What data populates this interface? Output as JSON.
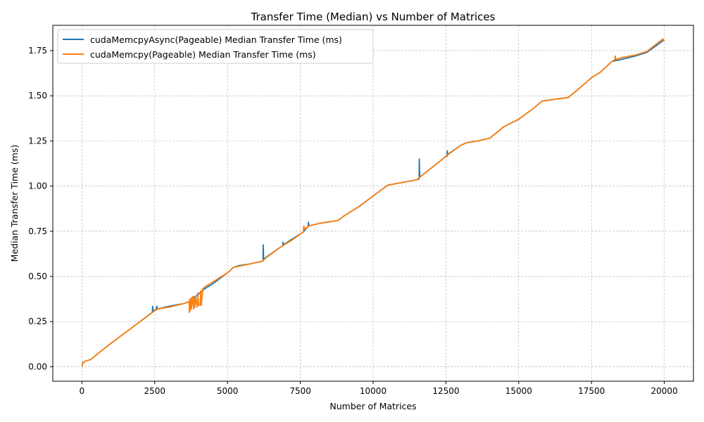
{
  "chart_data": {
    "type": "line",
    "title": "Transfer Time (Median) vs Number of Matrices",
    "xlabel": "Number of Matrices",
    "ylabel": "Median Transfer Time (ms)",
    "xlim": [
      -1000,
      21000
    ],
    "ylim": [
      -0.08,
      1.89
    ],
    "xticks": [
      0,
      2500,
      5000,
      7500,
      10000,
      12500,
      15000,
      17500,
      20000
    ],
    "xtick_labels": [
      "0",
      "2500",
      "5000",
      "7500",
      "10000",
      "12500",
      "15000",
      "17500",
      "20000"
    ],
    "yticks": [
      0,
      0.25,
      0.5,
      0.75,
      1.0,
      1.25,
      1.5,
      1.75
    ],
    "ytick_labels": [
      "0.00",
      "0.25",
      "0.50",
      "0.75",
      "1.00",
      "1.25",
      "1.50",
      "1.75"
    ],
    "grid": true,
    "legend_position": "top-left",
    "series": [
      {
        "name": "cudaMemcpyAsync(Pageable) Median Transfer Time (ms)",
        "color": "#1f77b4",
        "x": [
          0,
          100,
          300,
          600,
          1000,
          1500,
          2000,
          2400,
          2420,
          2425,
          2450,
          2550,
          2560,
          2565,
          2600,
          3000,
          3500,
          3680,
          3700,
          3900,
          4000,
          4200,
          4500,
          5000,
          5200,
          5400,
          5800,
          6200,
          6220,
          6225,
          6240,
          6400,
          6800,
          6900,
          6905,
          6920,
          7200,
          7600,
          7750,
          7770,
          7775,
          7800,
          8200,
          8800,
          9000,
          9500,
          10000,
          10500,
          11000,
          11500,
          11580,
          11585,
          11600,
          12000,
          12500,
          12540,
          12545,
          12560,
          13000,
          13200,
          13600,
          14000,
          14200,
          14500,
          15000,
          15500,
          15800,
          16200,
          16700,
          17000,
          17500,
          17800,
          18200,
          18500,
          19000,
          19400,
          20000
        ],
        "y": [
          0.02,
          0.03,
          0.04,
          0.08,
          0.13,
          0.19,
          0.25,
          0.3,
          0.3,
          0.335,
          0.305,
          0.32,
          0.32,
          0.335,
          0.32,
          0.335,
          0.35,
          0.36,
          0.37,
          0.39,
          0.4,
          0.43,
          0.46,
          0.52,
          0.55,
          0.56,
          0.57,
          0.585,
          0.585,
          0.675,
          0.595,
          0.615,
          0.66,
          0.67,
          0.69,
          0.675,
          0.705,
          0.745,
          0.775,
          0.775,
          0.8,
          0.78,
          0.795,
          0.81,
          0.835,
          0.885,
          0.945,
          1.005,
          1.02,
          1.035,
          1.04,
          1.15,
          1.05,
          1.1,
          1.165,
          1.165,
          1.195,
          1.175,
          1.225,
          1.24,
          1.25,
          1.265,
          1.29,
          1.33,
          1.37,
          1.43,
          1.47,
          1.48,
          1.49,
          1.53,
          1.6,
          1.63,
          1.69,
          1.7,
          1.72,
          1.74,
          1.81
        ]
      },
      {
        "name": "cudaMemcpy(Pageable) Median Transfer Time (ms)",
        "color": "#ff7f0e",
        "x": [
          0,
          30,
          100,
          300,
          600,
          1000,
          1500,
          2000,
          2500,
          2600,
          3000,
          3500,
          3680,
          3690,
          3700,
          3720,
          3740,
          3760,
          3800,
          3840,
          3860,
          3880,
          3900,
          3960,
          3980,
          4000,
          4060,
          4080,
          4100,
          4150,
          4200,
          4500,
          5000,
          5200,
          5500,
          5800,
          6200,
          6300,
          6800,
          7200,
          7600,
          7620,
          7640,
          7700,
          7800,
          8200,
          8800,
          9000,
          9500,
          10000,
          10500,
          11000,
          11500,
          12000,
          12500,
          13000,
          13200,
          13600,
          14000,
          14200,
          14500,
          15000,
          15500,
          15800,
          16200,
          16700,
          17000,
          17500,
          17800,
          18200,
          18300,
          18320,
          18340,
          18500,
          19000,
          19400,
          19950,
          20000
        ],
        "y": [
          0.0,
          0.02,
          0.03,
          0.04,
          0.08,
          0.13,
          0.19,
          0.25,
          0.31,
          0.32,
          0.33,
          0.35,
          0.36,
          0.3,
          0.37,
          0.31,
          0.38,
          0.32,
          0.39,
          0.32,
          0.38,
          0.33,
          0.39,
          0.33,
          0.41,
          0.34,
          0.34,
          0.42,
          0.34,
          0.43,
          0.44,
          0.47,
          0.52,
          0.55,
          0.56,
          0.57,
          0.585,
          0.6,
          0.66,
          0.7,
          0.745,
          0.78,
          0.76,
          0.77,
          0.78,
          0.795,
          0.81,
          0.835,
          0.885,
          0.945,
          1.005,
          1.02,
          1.035,
          1.1,
          1.165,
          1.225,
          1.24,
          1.25,
          1.265,
          1.29,
          1.33,
          1.37,
          1.43,
          1.47,
          1.48,
          1.49,
          1.53,
          1.6,
          1.63,
          1.69,
          1.7,
          1.72,
          1.7,
          1.71,
          1.725,
          1.745,
          1.815,
          1.8
        ]
      }
    ]
  }
}
